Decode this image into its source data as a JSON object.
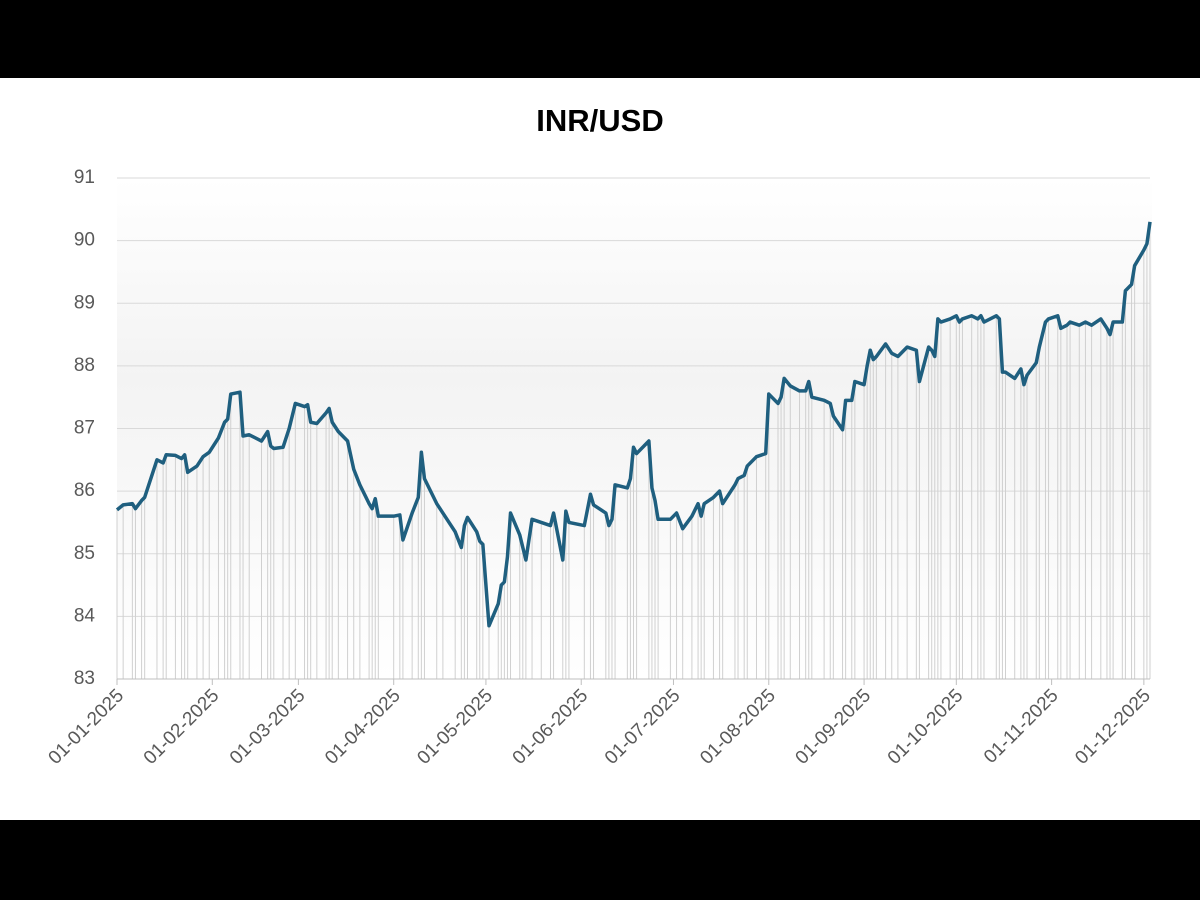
{
  "chart_data": {
    "type": "line",
    "title": "INR/USD",
    "color": "#1f5f7f",
    "drop_color": "#d0d0d0",
    "grid": true,
    "x": [
      "01-01-2025",
      "03-01-2025",
      "06-01-2025",
      "07-01-2025",
      "09-01-2025",
      "10-01-2025",
      "14-01-2025",
      "16-01-2025",
      "17-01-2025",
      "20-01-2025",
      "22-01-2025",
      "23-01-2025",
      "24-01-2025",
      "27-01-2025",
      "29-01-2025",
      "31-01-2025",
      "03-02-2025",
      "05-02-2025",
      "06-02-2025",
      "07-02-2025",
      "10-02-2025",
      "11-02-2025",
      "13-02-2025",
      "17-02-2025",
      "19-02-2025",
      "20-02-2025",
      "21-02-2025",
      "24-02-2025",
      "26-02-2025",
      "28-02-2025",
      "03-03-2025",
      "04-03-2025",
      "05-03-2025",
      "07-03-2025",
      "10-03-2025",
      "11-03-2025",
      "12-03-2025",
      "14-03-2025",
      "17-03-2025",
      "19-03-2025",
      "21-03-2025",
      "24-03-2025",
      "25-03-2025",
      "26-03-2025",
      "27-03-2025",
      "01-04-2025",
      "03-04-2025",
      "04-04-2025",
      "07-04-2025",
      "09-04-2025",
      "10-04-2025",
      "11-04-2025",
      "15-04-2025",
      "17-04-2025",
      "21-04-2025",
      "23-04-2025",
      "24-04-2025",
      "25-04-2025",
      "28-04-2025",
      "29-04-2025",
      "30-04-2025",
      "02-05-2025",
      "05-05-2025",
      "06-05-2025",
      "07-05-2025",
      "08-05-2025",
      "09-05-2025",
      "12-05-2025",
      "13-05-2025",
      "14-05-2025",
      "16-05-2025",
      "19-05-2025",
      "22-05-2025",
      "23-05-2025",
      "26-05-2025",
      "27-05-2025",
      "28-05-2025",
      "02-06-2025",
      "04-06-2025",
      "05-06-2025",
      "09-06-2025",
      "10-06-2025",
      "11-06-2025",
      "12-06-2025",
      "16-06-2025",
      "17-06-2025",
      "18-06-2025",
      "19-06-2025",
      "23-06-2025",
      "24-06-2025",
      "25-06-2025",
      "26-06-2025",
      "30-06-2025",
      "02-07-2025",
      "04-07-2025",
      "07-07-2025",
      "09-07-2025",
      "10-07-2025",
      "11-07-2025",
      "14-07-2025",
      "16-07-2025",
      "17-07-2025",
      "21-07-2025",
      "22-07-2025",
      "24-07-2025",
      "25-07-2025",
      "28-07-2025",
      "31-07-2025",
      "01-08-2025",
      "04-08-2025",
      "05-08-2025",
      "06-08-2025",
      "08-08-2025",
      "11-08-2025",
      "13-08-2025",
      "14-08-2025",
      "15-08-2025",
      "19-08-2025",
      "21-08-2025",
      "22-08-2025",
      "25-08-2025",
      "26-08-2025",
      "28-08-2025",
      "29-08-2025",
      "01-09-2025",
      "02-09-2025",
      "03-09-2025",
      "04-09-2025",
      "05-09-2025",
      "08-09-2025",
      "10-09-2025",
      "12-09-2025",
      "15-09-2025",
      "18-09-2025",
      "19-09-2025",
      "22-09-2025",
      "23-09-2025",
      "24-09-2025",
      "25-09-2025",
      "26-09-2025",
      "29-09-2025",
      "01-10-2025",
      "02-10-2025",
      "03-10-2025",
      "06-10-2025",
      "08-10-2025",
      "09-10-2025",
      "10-10-2025",
      "14-10-2025",
      "15-10-2025",
      "16-10-2025",
      "17-10-2025",
      "20-10-2025",
      "22-10-2025",
      "23-10-2025",
      "24-10-2025",
      "27-10-2025",
      "28-10-2025",
      "30-10-2025",
      "31-10-2025",
      "03-11-2025",
      "04-11-2025",
      "06-11-2025",
      "07-11-2025",
      "10-11-2025",
      "12-11-2025",
      "14-11-2025",
      "17-11-2025",
      "19-11-2025",
      "20-11-2025",
      "21-11-2025",
      "24-11-2025",
      "25-11-2025",
      "27-11-2025",
      "28-11-2025",
      "01-12-2025",
      "02-12-2025",
      "03-12-2025"
    ],
    "values": [
      85.7,
      85.78,
      85.8,
      85.72,
      85.85,
      85.9,
      86.5,
      86.45,
      86.58,
      86.57,
      86.52,
      86.58,
      86.3,
      86.4,
      86.55,
      86.62,
      86.85,
      87.1,
      87.15,
      87.55,
      87.58,
      86.88,
      86.9,
      86.8,
      86.95,
      86.72,
      86.68,
      86.7,
      87.0,
      87.4,
      87.35,
      87.38,
      87.1,
      87.08,
      87.25,
      87.32,
      87.1,
      86.95,
      86.8,
      86.35,
      86.1,
      85.8,
      85.72,
      85.88,
      85.6,
      85.6,
      85.62,
      85.22,
      85.65,
      85.9,
      86.62,
      86.2,
      85.8,
      85.65,
      85.35,
      85.1,
      85.45,
      85.58,
      85.35,
      85.2,
      85.15,
      83.85,
      84.2,
      84.5,
      84.55,
      84.95,
      85.65,
      85.3,
      85.1,
      84.9,
      85.55,
      85.5,
      85.45,
      85.65,
      84.9,
      85.68,
      85.5,
      85.45,
      85.95,
      85.78,
      85.65,
      85.45,
      85.55,
      86.1,
      86.05,
      86.2,
      86.7,
      86.6,
      86.8,
      86.05,
      85.85,
      85.55,
      85.55,
      85.65,
      85.4,
      85.6,
      85.8,
      85.6,
      85.8,
      85.9,
      86.0,
      85.8,
      86.1,
      86.2,
      86.25,
      86.4,
      86.55,
      86.6,
      87.55,
      87.4,
      87.5,
      87.8,
      87.68,
      87.6,
      87.6,
      87.75,
      87.5,
      87.45,
      87.4,
      87.2,
      86.98,
      87.45,
      87.45,
      87.75,
      87.7,
      88.0,
      88.25,
      88.1,
      88.15,
      88.35,
      88.2,
      88.15,
      88.3,
      88.25,
      87.75,
      88.3,
      88.25,
      88.15,
      88.75,
      88.7,
      88.75,
      88.8,
      88.7,
      88.75,
      88.8,
      88.75,
      88.8,
      88.7,
      88.8,
      88.75,
      87.9,
      87.9,
      87.8,
      87.95,
      87.7,
      87.85,
      88.05,
      88.3,
      88.7,
      88.75,
      88.8,
      88.6,
      88.65,
      88.7,
      88.65,
      88.7,
      88.65,
      88.75,
      88.6,
      88.5,
      88.7,
      88.7,
      89.2,
      89.3,
      89.6,
      89.85,
      89.95,
      90.3
    ],
    "xlim": [
      "01-01-2025",
      "03-12-2025"
    ],
    "xticks": [
      "01-01-2025",
      "01-02-2025",
      "01-03-2025",
      "01-04-2025",
      "01-05-2025",
      "01-06-2025",
      "01-07-2025",
      "01-08-2025",
      "01-09-2025",
      "01-10-2025",
      "01-11-2025",
      "01-12-2025"
    ],
    "ylim": [
      83,
      91
    ],
    "yticks": [
      83,
      84,
      85,
      86,
      87,
      88,
      89,
      90,
      91
    ]
  }
}
